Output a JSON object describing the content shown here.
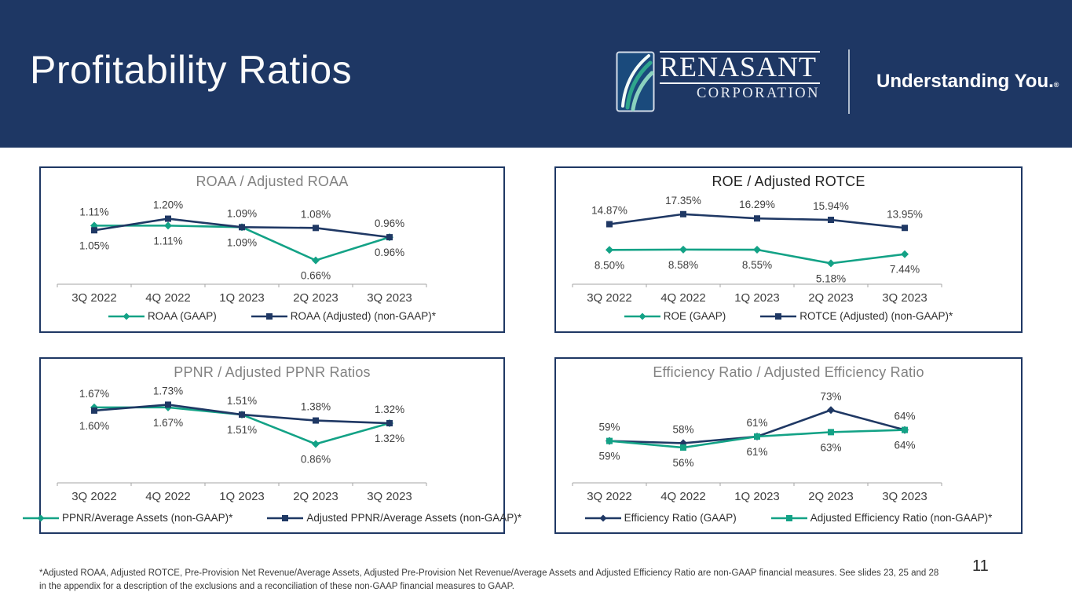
{
  "slide": {
    "title": "Profitability Ratios",
    "page_number": "11",
    "footnote": "*Adjusted ROAA, Adjusted ROTCE, Pre-Provision Net Revenue/Average Assets, Adjusted Pre-Provision Net Revenue/Average Assets and Adjusted Efficiency Ratio are non-GAAP financial measures. See slides 23, 25 and 28 in the appendix for a description of the exclusions and a reconciliation of these non-GAAP financial measures to GAAP."
  },
  "brand": {
    "name": "RENASANT",
    "subtitle": "CORPORATION",
    "tagline": "Understanding You.",
    "registered_mark": "®",
    "leaf_icon": "renasant-leaf-icon"
  },
  "colors": {
    "header_bg": "#1E3764",
    "navy": "#1F3864",
    "teal": "#13A286",
    "card_border": "#1F3864",
    "axis_gray": "#A6A6A6",
    "label_text": "#3F3F3F",
    "chart_title_gray": "#828282",
    "chart_title_dark": "#212121"
  },
  "chart_data": [
    {
      "type": "line",
      "title": "ROAA / Adjusted ROAA",
      "title_color": "#828282",
      "categories": [
        "3Q 2022",
        "4Q 2022",
        "1Q 2023",
        "2Q 2023",
        "3Q 2023"
      ],
      "ylim": [
        0.35,
        1.45
      ],
      "legend_position": "bottom",
      "grid": false,
      "series": [
        {
          "name": "ROAA (GAAP)",
          "color": "#13A286",
          "marker": "diamond",
          "values": [
            1.11,
            1.11,
            1.09,
            0.66,
            0.96
          ],
          "labels": [
            "1.11%",
            "1.11%",
            "1.09%",
            "0.66%",
            "0.96%"
          ],
          "label_side": [
            "above",
            "below",
            "below",
            "below",
            "below"
          ]
        },
        {
          "name": "ROAA (Adjusted) (non-GAAP)*",
          "color": "#1F3864",
          "marker": "square",
          "values": [
            1.05,
            1.2,
            1.09,
            1.08,
            0.96
          ],
          "labels": [
            "1.05%",
            "1.20%",
            "1.09%",
            "1.08%",
            "0.96%"
          ],
          "label_side": [
            "below",
            "above",
            "above",
            "above",
            "above"
          ]
        }
      ]
    },
    {
      "type": "line",
      "title": "ROE / Adjusted ROTCE",
      "title_color": "#212121",
      "categories": [
        "3Q 2022",
        "4Q 2022",
        "1Q 2023",
        "2Q 2023",
        "3Q 2023"
      ],
      "ylim": [
        0,
        21
      ],
      "legend_position": "bottom",
      "grid": false,
      "series": [
        {
          "name": "ROE (GAAP)",
          "color": "#13A286",
          "marker": "diamond",
          "values": [
            8.5,
            8.58,
            8.55,
            5.18,
            7.44
          ],
          "labels": [
            "8.50%",
            "8.58%",
            "8.55%",
            "5.18%",
            "7.44%"
          ],
          "label_side": [
            "below",
            "below",
            "below",
            "below",
            "below"
          ]
        },
        {
          "name": "ROTCE (Adjusted) (non-GAAP)*",
          "color": "#1F3864",
          "marker": "square",
          "values": [
            14.87,
            17.35,
            16.29,
            15.94,
            13.95
          ],
          "labels": [
            "14.87%",
            "17.35%",
            "16.29%",
            "15.94%",
            "13.95%"
          ],
          "label_side": [
            "above",
            "above",
            "above",
            "above",
            "above"
          ]
        }
      ]
    },
    {
      "type": "line",
      "title": "PPNR / Adjusted PPNR Ratios",
      "title_color": "#828282",
      "categories": [
        "3Q 2022",
        "4Q 2022",
        "1Q 2023",
        "2Q 2023",
        "3Q 2023"
      ],
      "ylim": [
        0,
        2.05
      ],
      "legend_position": "bottom",
      "grid": false,
      "series": [
        {
          "name": "PPNR/Average Assets (non-GAAP)*",
          "color": "#13A286",
          "marker": "diamond",
          "values": [
            1.67,
            1.67,
            1.51,
            0.86,
            1.32
          ],
          "labels": [
            "1.67%",
            "1.67%",
            "1.51%",
            "0.86%",
            "1.32%"
          ],
          "label_side": [
            "above",
            "below",
            "below",
            "below",
            "below"
          ]
        },
        {
          "name": "Adjusted PPNR/Average Assets (non-GAAP)*",
          "color": "#1F3864",
          "marker": "square",
          "values": [
            1.6,
            1.73,
            1.51,
            1.38,
            1.32
          ],
          "labels": [
            "1.60%",
            "1.73%",
            "1.51%",
            "1.38%",
            "1.32%"
          ],
          "label_side": [
            "below",
            "above",
            "above",
            "above",
            "above"
          ]
        }
      ]
    },
    {
      "type": "line",
      "title": "Efficiency Ratio / Adjusted Efficiency Ratio",
      "title_color": "#828282",
      "categories": [
        "3Q 2022",
        "4Q 2022",
        "1Q 2023",
        "2Q 2023",
        "3Q 2023"
      ],
      "ylim": [
        40,
        82
      ],
      "legend_position": "bottom",
      "grid": false,
      "series": [
        {
          "name": "Efficiency Ratio (GAAP)",
          "color": "#1F3864",
          "marker": "diamond",
          "values": [
            59,
            58,
            61,
            73,
            64
          ],
          "labels": [
            "59%",
            "58%",
            "61%",
            "73%",
            "64%"
          ],
          "label_side": [
            "above",
            "above",
            "above",
            "above",
            "above"
          ]
        },
        {
          "name": "Adjusted Efficiency Ratio (non-GAAP)*",
          "color": "#13A286",
          "marker": "square",
          "values": [
            59,
            56,
            61,
            63,
            64
          ],
          "labels": [
            "59%",
            "56%",
            "61%",
            "63%",
            "64%"
          ],
          "label_side": [
            "below",
            "below",
            "below",
            "below",
            "below"
          ]
        }
      ]
    }
  ]
}
